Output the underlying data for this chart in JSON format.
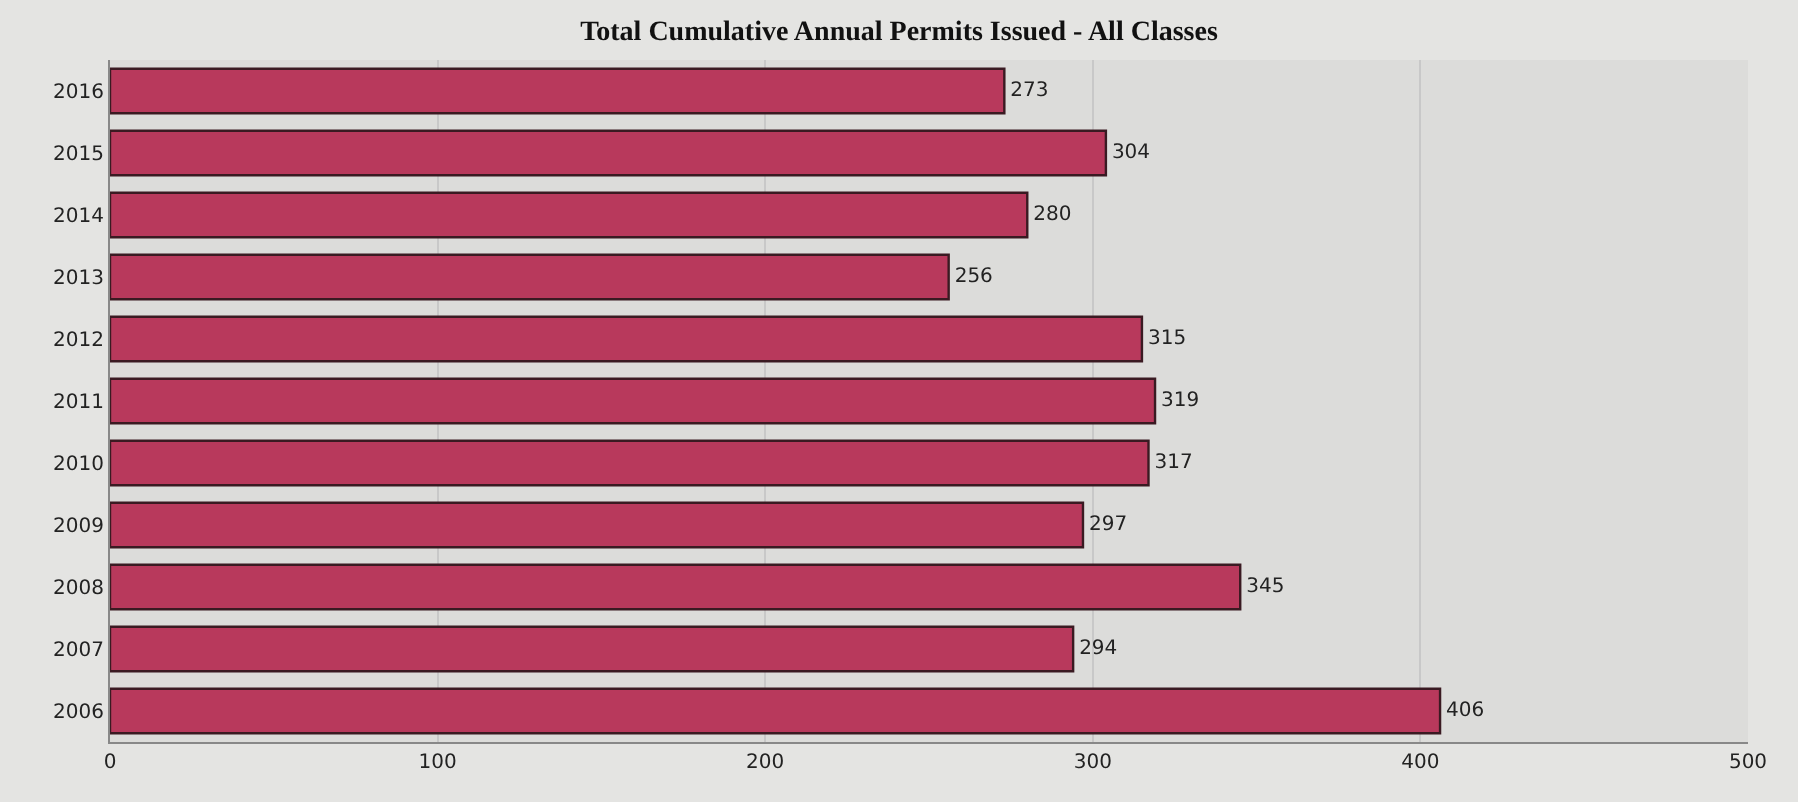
{
  "chart_data": {
    "type": "bar",
    "orientation": "horizontal",
    "title": "Total Cumulative Annual Permits Issued - All Classes",
    "categories": [
      "2016",
      "2015",
      "2014",
      "2013",
      "2012",
      "2011",
      "2010",
      "2009",
      "2008",
      "2007",
      "2006"
    ],
    "values": [
      273,
      304,
      280,
      256,
      315,
      319,
      317,
      297,
      345,
      294,
      406
    ],
    "color": "#b8395c",
    "xlim": [
      0,
      500
    ],
    "xticks": [
      0,
      100,
      200,
      300,
      400,
      500
    ],
    "grid": "x",
    "data_labels": true
  }
}
